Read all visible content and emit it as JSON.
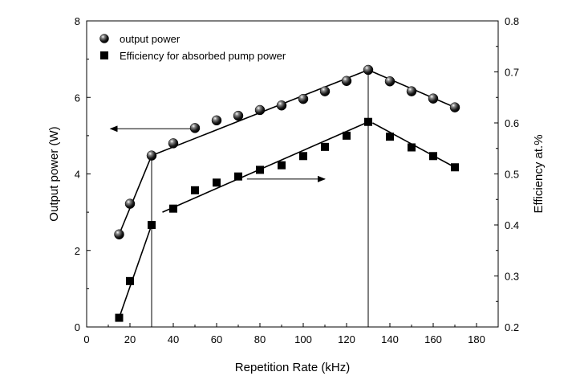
{
  "chart_data": {
    "type": "scatter",
    "xlabel": "Repetition Rate (kHz)",
    "ylabel_left": "Output power (W)",
    "ylabel_right": "Efficiency at.%",
    "xlim": [
      0,
      190
    ],
    "ylim_left": [
      0,
      8
    ],
    "ylim_right": [
      0.2,
      0.8
    ],
    "x_ticks": [
      0,
      20,
      40,
      60,
      80,
      100,
      120,
      140,
      160,
      180
    ],
    "y_left_ticks": [
      0,
      2,
      4,
      6,
      8
    ],
    "y_right_ticks": [
      0.2,
      0.3,
      0.4,
      0.5,
      0.6,
      0.7,
      0.8
    ],
    "legend_position": "top-left",
    "series": [
      {
        "name": "output power",
        "axis": "left",
        "marker": "sphere",
        "x": [
          15,
          20,
          30,
          40,
          50,
          60,
          70,
          80,
          90,
          100,
          110,
          120,
          130,
          140,
          150,
          160,
          170
        ],
        "y": [
          2.42,
          3.22,
          4.48,
          4.8,
          5.2,
          5.4,
          5.52,
          5.67,
          5.79,
          5.96,
          6.16,
          6.43,
          6.72,
          6.42,
          6.16,
          5.97,
          5.74
        ]
      },
      {
        "name": "Efficiency for absorbed pump power",
        "axis": "right",
        "marker": "square",
        "x": [
          15,
          20,
          30,
          40,
          50,
          60,
          70,
          80,
          90,
          100,
          110,
          120,
          130,
          140,
          150,
          160,
          170
        ],
        "y": [
          0.218,
          0.29,
          0.4,
          0.432,
          0.468,
          0.483,
          0.495,
          0.508,
          0.517,
          0.535,
          0.553,
          0.575,
          0.602,
          0.573,
          0.552,
          0.535,
          0.513
        ]
      }
    ],
    "fit_lines_left": [
      [
        [
          15,
          2.42
        ],
        [
          30,
          4.48
        ]
      ],
      [
        [
          30,
          4.48
        ],
        [
          130,
          6.72
        ]
      ],
      [
        [
          130,
          6.72
        ],
        [
          170,
          5.74
        ]
      ]
    ],
    "fit_lines_right": [
      [
        [
          15,
          0.218
        ],
        [
          30,
          0.4
        ]
      ],
      [
        [
          35,
          0.425
        ],
        [
          130,
          0.602
        ]
      ],
      [
        [
          132,
          0.6
        ],
        [
          170,
          0.513
        ]
      ]
    ],
    "vertical_lines_x": [
      30,
      130
    ],
    "arrows": [
      {
        "axis": "left",
        "from": [
          50,
          5.18
        ],
        "to": [
          11,
          5.18
        ]
      },
      {
        "axis": "right",
        "from": [
          74,
          0.49
        ],
        "to": [
          110,
          0.49
        ]
      }
    ]
  }
}
